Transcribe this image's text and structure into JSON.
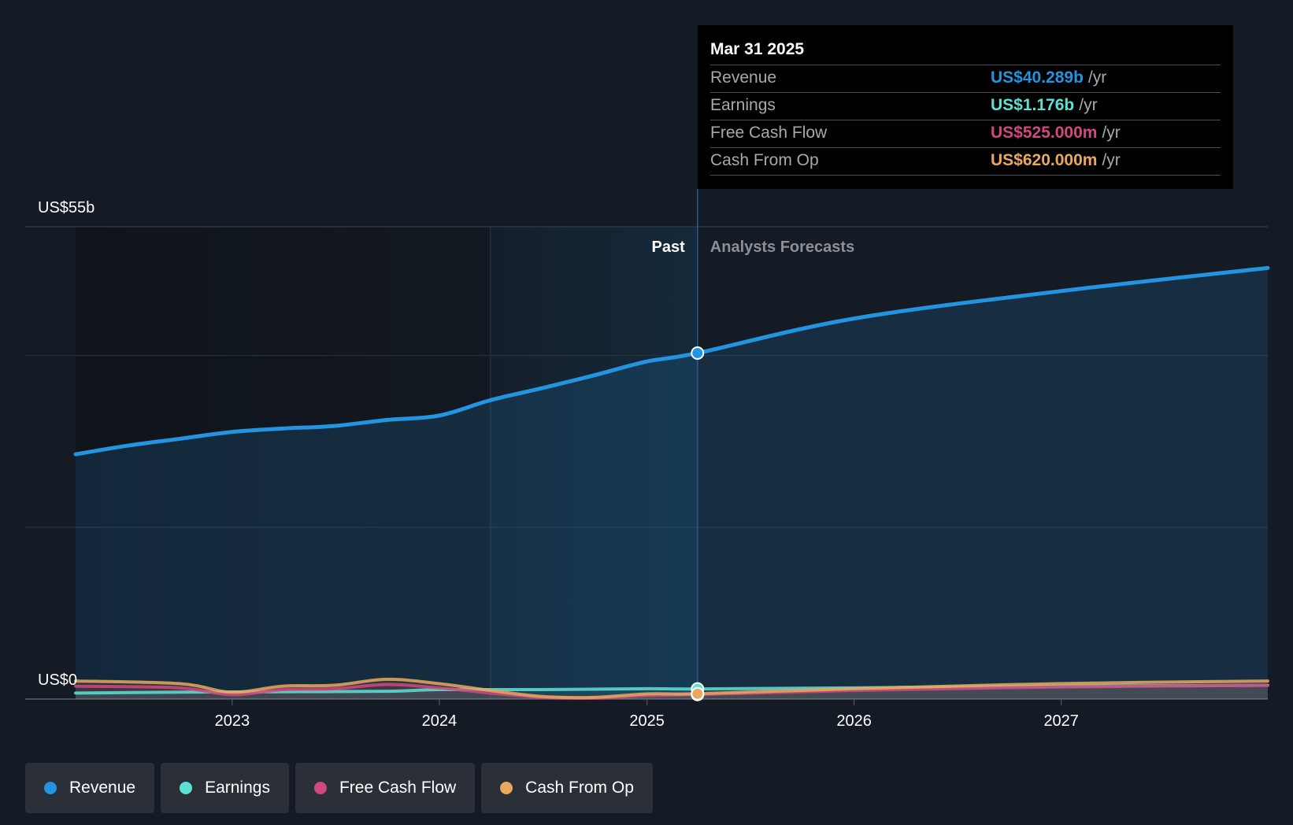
{
  "chart_data": {
    "type": "area",
    "ylim": [
      0,
      55
    ],
    "y_unit": "US$ billions",
    "y_tick_labels": {
      "top": "US$55b",
      "bottom": "US$0"
    },
    "x_ticks": [
      "2023",
      "2024",
      "2025",
      "2026",
      "2027"
    ],
    "past_label": "Past",
    "forecast_label": "Analysts Forecasts",
    "past_end": "2025-03-31",
    "series": [
      {
        "name": "Revenue",
        "color": "#2394df",
        "points": [
          [
            "2022-03-31",
            28.5
          ],
          [
            "2022-06-30",
            29.5
          ],
          [
            "2022-09-30",
            30.3
          ],
          [
            "2022-12-31",
            31.1
          ],
          [
            "2023-03-31",
            31.5
          ],
          [
            "2023-06-30",
            31.8
          ],
          [
            "2023-09-30",
            32.5
          ],
          [
            "2023-12-31",
            33.0
          ],
          [
            "2024-03-31",
            34.8
          ],
          [
            "2024-06-30",
            36.2
          ],
          [
            "2024-09-30",
            37.7
          ],
          [
            "2024-12-31",
            39.3
          ],
          [
            "2025-03-31",
            40.289
          ],
          [
            "2025-12-31",
            44.3
          ],
          [
            "2026-12-31",
            47.5
          ],
          [
            "2027-12-31",
            50.2
          ]
        ]
      },
      {
        "name": "Earnings",
        "color": "#5fe0d4",
        "points": [
          [
            "2022-03-31",
            0.7
          ],
          [
            "2022-09-30",
            0.8
          ],
          [
            "2023-03-31",
            0.85
          ],
          [
            "2023-09-30",
            0.9
          ],
          [
            "2023-12-31",
            1.1
          ],
          [
            "2024-06-30",
            1.1
          ],
          [
            "2024-12-31",
            1.2
          ],
          [
            "2025-03-31",
            1.176
          ],
          [
            "2025-12-31",
            1.3
          ],
          [
            "2026-12-31",
            1.5
          ],
          [
            "2027-12-31",
            1.6
          ]
        ]
      },
      {
        "name": "Free Cash Flow",
        "color": "#d1487e",
        "points": [
          [
            "2022-03-31",
            1.5
          ],
          [
            "2022-09-30",
            1.3
          ],
          [
            "2022-12-31",
            0.5
          ],
          [
            "2023-03-31",
            1.1
          ],
          [
            "2023-06-30",
            1.2
          ],
          [
            "2023-09-30",
            1.7
          ],
          [
            "2023-12-31",
            1.3
          ],
          [
            "2024-03-31",
            0.7
          ],
          [
            "2024-06-30",
            0.2
          ],
          [
            "2024-09-30",
            0.1
          ],
          [
            "2024-12-31",
            0.4
          ],
          [
            "2025-03-31",
            0.525
          ],
          [
            "2025-12-31",
            1.0
          ],
          [
            "2026-12-31",
            1.4
          ],
          [
            "2027-12-31",
            1.6
          ]
        ]
      },
      {
        "name": "Cash From Op",
        "color": "#e9a85e",
        "points": [
          [
            "2022-03-31",
            2.1
          ],
          [
            "2022-09-30",
            1.8
          ],
          [
            "2022-12-31",
            0.8
          ],
          [
            "2023-03-31",
            1.5
          ],
          [
            "2023-06-30",
            1.6
          ],
          [
            "2023-09-30",
            2.3
          ],
          [
            "2023-12-31",
            1.8
          ],
          [
            "2024-03-31",
            1.0
          ],
          [
            "2024-06-30",
            0.3
          ],
          [
            "2024-09-30",
            0.2
          ],
          [
            "2024-12-31",
            0.6
          ],
          [
            "2025-03-31",
            0.62
          ],
          [
            "2025-12-31",
            1.2
          ],
          [
            "2026-12-31",
            1.8
          ],
          [
            "2027-12-31",
            2.1
          ]
        ]
      }
    ]
  },
  "tooltip": {
    "date": "Mar 31 2025",
    "unit": "/yr",
    "rows": [
      {
        "label": "Revenue",
        "value": "US$40.289b",
        "color": "#2394df"
      },
      {
        "label": "Earnings",
        "value": "US$1.176b",
        "color": "#5fe0d4"
      },
      {
        "label": "Free Cash Flow",
        "value": "US$525.000m",
        "color": "#d1487e"
      },
      {
        "label": "Cash From Op",
        "value": "US$620.000m",
        "color": "#e9a85e"
      }
    ]
  },
  "legend": [
    {
      "label": "Revenue",
      "color": "#2394df"
    },
    {
      "label": "Earnings",
      "color": "#5fe0d4"
    },
    {
      "label": "Free Cash Flow",
      "color": "#d1487e"
    },
    {
      "label": "Cash From Op",
      "color": "#e9a85e"
    }
  ]
}
